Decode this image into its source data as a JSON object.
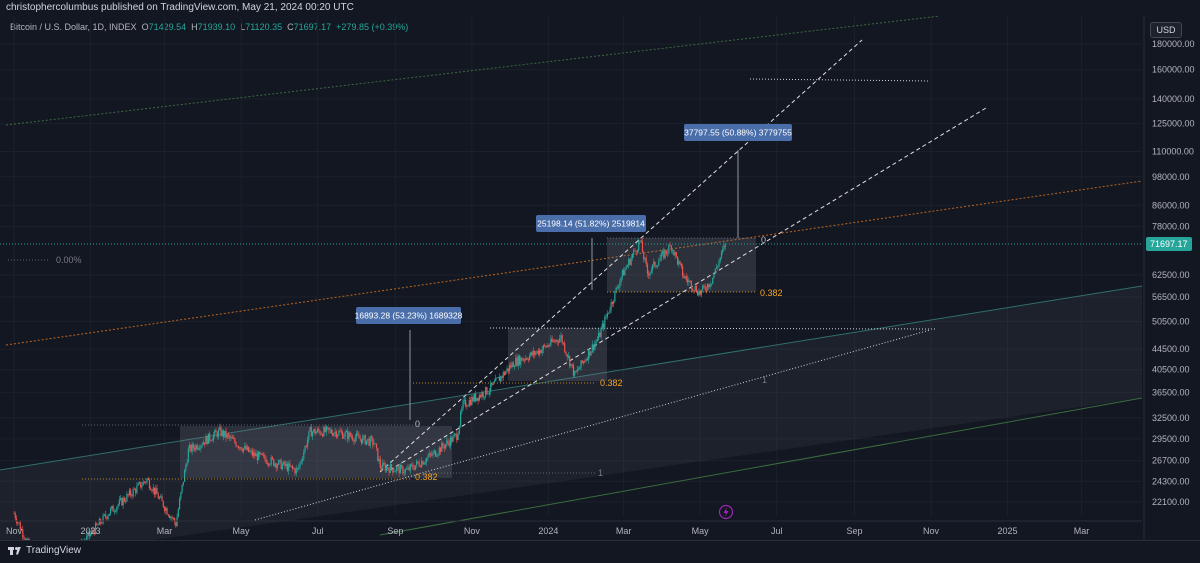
{
  "header": {
    "published": "christophercolumbus published on TradingView.com, May 21, 2024 00:20 UTC"
  },
  "legend": {
    "symbol": "Bitcoin / U.S. Dollar, 1D, INDEX",
    "o_key": "O",
    "o_val": "71429.54",
    "h_key": "H",
    "h_val": "71939.10",
    "l_key": "L",
    "l_val": "71120.35",
    "c_key": "C",
    "c_val": "71697.17",
    "change": "+279.85 (+0.39%)"
  },
  "currency": "USD",
  "last_price": "71697.17",
  "footer": {
    "logo_text": "TradingView"
  },
  "colors": {
    "background": "#131722",
    "up": "#26a69a",
    "down": "#ef5350",
    "label_box": "#4a6ea9",
    "fib_orange": "#f5a623",
    "price_tag": "#26a69a"
  },
  "chart_data": {
    "type": "candlestick",
    "y_scale": "log",
    "ylim": [
      21000,
      200000
    ],
    "y_ticks": [
      "180000.00",
      "160000.00",
      "140000.00",
      "125000.00",
      "110000.00",
      "98000.00",
      "86000.00",
      "78000.00",
      "62500.00",
      "56500.00",
      "50500.00",
      "44500.00",
      "40500.00",
      "36500.00",
      "32500.00",
      "29500.00",
      "26700.00",
      "24300.00",
      "22100.00"
    ],
    "x_ticks": [
      "Nov",
      "2023",
      "Mar",
      "May",
      "Jul",
      "Sep",
      "Nov",
      "2024",
      "Mar",
      "May",
      "Jul",
      "Sep",
      "Nov",
      "2025",
      "Mar"
    ],
    "measure_labels": [
      "16893.28 (53.23%) 1689328",
      "25198.14 (51.82%) 2519814",
      "37797.55 (50.88%) 3779755"
    ],
    "fib_labels": {
      "zero": "0",
      "level": "0.382",
      "one": "1",
      "pct_zero": "0.00%"
    },
    "price_path": [
      [
        "2022-11-01",
        21000
      ],
      [
        "2022-11-20",
        16500
      ],
      [
        "2022-12-15",
        17000
      ],
      [
        "2023-01-15",
        21000
      ],
      [
        "2023-02-15",
        24500
      ],
      [
        "2023-03-10",
        20000
      ],
      [
        "2023-03-20",
        28000
      ],
      [
        "2023-04-14",
        30500
      ],
      [
        "2023-05-10",
        27500
      ],
      [
        "2023-06-15",
        25500
      ],
      [
        "2023-06-25",
        30500
      ],
      [
        "2023-07-15",
        30500
      ],
      [
        "2023-08-15",
        29000
      ],
      [
        "2023-08-20",
        26000
      ],
      [
        "2023-09-10",
        25500
      ],
      [
        "2023-10-01",
        27500
      ],
      [
        "2023-10-20",
        30000
      ],
      [
        "2023-10-25",
        34500
      ],
      [
        "2023-11-15",
        37000
      ],
      [
        "2023-12-05",
        42000
      ],
      [
        "2023-12-20",
        43500
      ],
      [
        "2024-01-11",
        47000
      ],
      [
        "2024-01-22",
        39500
      ],
      [
        "2024-02-10",
        47000
      ],
      [
        "2024-02-28",
        62000
      ],
      [
        "2024-03-14",
        73000
      ],
      [
        "2024-03-20",
        63000
      ],
      [
        "2024-04-08",
        71500
      ],
      [
        "2024-04-18",
        62000
      ],
      [
        "2024-05-01",
        57500
      ],
      [
        "2024-05-10",
        61000
      ],
      [
        "2024-05-21",
        71697
      ]
    ]
  }
}
